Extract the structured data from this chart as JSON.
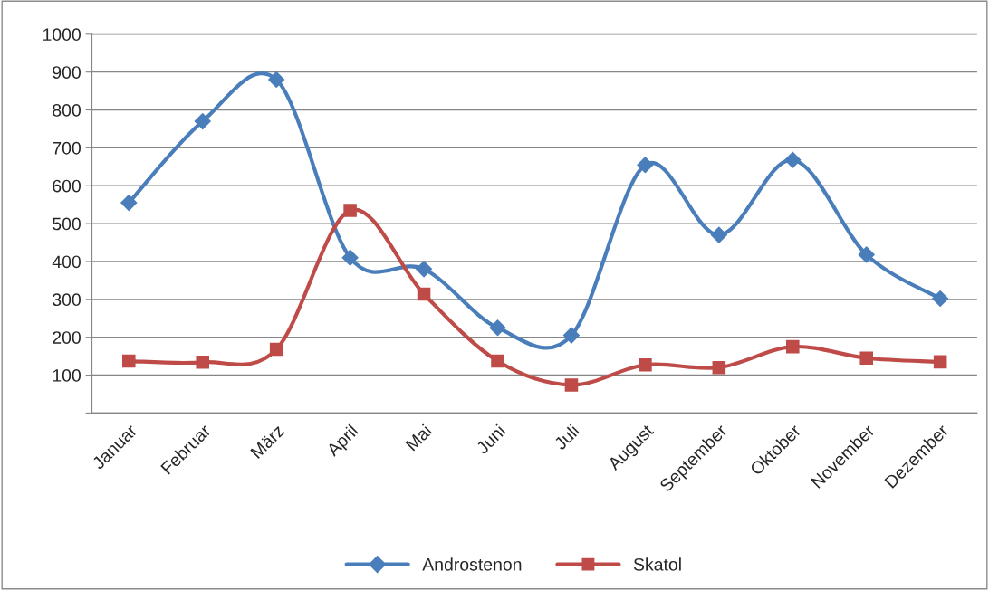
{
  "chart_data": {
    "type": "line",
    "categories": [
      "Januar",
      "Februar",
      "März",
      "April",
      "Mai",
      "Juni",
      "Juli",
      "August",
      "September",
      "Oktober",
      "November",
      "Dezember"
    ],
    "series": [
      {
        "name": "Androstenon",
        "color": "#4a7ebb",
        "marker": "diamond",
        "values": [
          555,
          770,
          880,
          410,
          380,
          225,
          205,
          655,
          470,
          668,
          418,
          302
        ]
      },
      {
        "name": "Skatol",
        "color": "#be4b48",
        "marker": "square",
        "values": [
          137,
          134,
          168,
          535,
          314,
          137,
          74,
          127,
          120,
          175,
          145,
          135
        ]
      }
    ],
    "ylim": [
      0,
      1000
    ],
    "yticks": [
      {
        "value": 0,
        "label": null
      },
      100,
      200,
      300,
      400,
      500,
      600,
      700,
      800,
      900,
      1000
    ],
    "grid": "y",
    "legend": "bottom",
    "line_style": "solid"
  }
}
